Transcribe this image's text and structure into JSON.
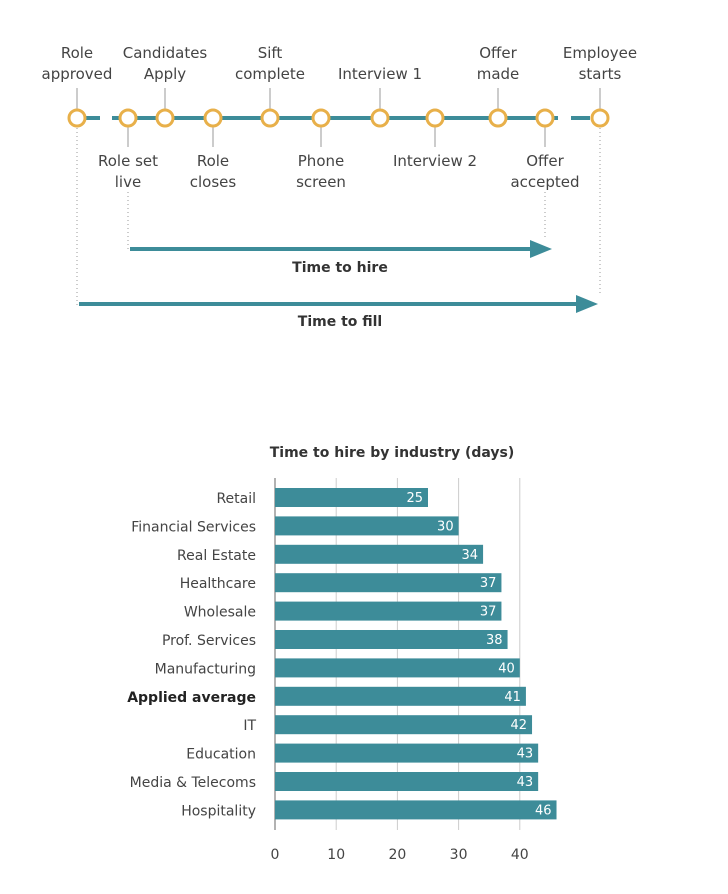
{
  "timeline": {
    "milestones_above": [
      {
        "id": "role-approved",
        "lines": [
          "Role",
          "approved"
        ]
      },
      {
        "id": "candidates-apply",
        "lines": [
          "Candidates",
          "Apply"
        ]
      },
      {
        "id": "sift-complete",
        "lines": [
          "Sift",
          "complete"
        ]
      },
      {
        "id": "interview-1",
        "lines": [
          "Interview 1"
        ]
      },
      {
        "id": "offer-made",
        "lines": [
          "Offer",
          "made"
        ]
      },
      {
        "id": "employee-starts",
        "lines": [
          "Employee",
          "starts"
        ]
      }
    ],
    "milestones_below": [
      {
        "id": "role-set-live",
        "lines": [
          "Role set",
          "live"
        ]
      },
      {
        "id": "role-closes",
        "lines": [
          "Role",
          "closes"
        ]
      },
      {
        "id": "phone-screen",
        "lines": [
          "Phone",
          "screen"
        ]
      },
      {
        "id": "interview-2",
        "lines": [
          "Interview 2"
        ]
      },
      {
        "id": "offer-accepted",
        "lines": [
          "Offer",
          "accepted"
        ]
      }
    ],
    "time_to_hire_label": "Time to hire",
    "time_to_fill_label": "Time to fill",
    "colors": {
      "line": "#3d8c99",
      "node": "#e8b04a",
      "guide": "#999999"
    }
  },
  "chart_data": {
    "type": "bar",
    "orientation": "horizontal",
    "title": "Time to hire by industry (days)",
    "categories": [
      "Retail",
      "Financial Services",
      "Real Estate",
      "Healthcare",
      "Wholesale",
      "Prof. Services",
      "Manufacturing",
      "Applied average",
      "IT",
      "Education",
      "Media & Telecoms",
      "Hospitality"
    ],
    "values": [
      25,
      30,
      34,
      37,
      37,
      38,
      40,
      41,
      42,
      43,
      43,
      46
    ],
    "highlighted_category": "Applied average",
    "xticks": [
      0,
      10,
      20,
      30,
      40
    ],
    "xlim": [
      0,
      46
    ],
    "grid": true,
    "bar_color": "#3d8c99",
    "grid_color": "#cccccc"
  }
}
